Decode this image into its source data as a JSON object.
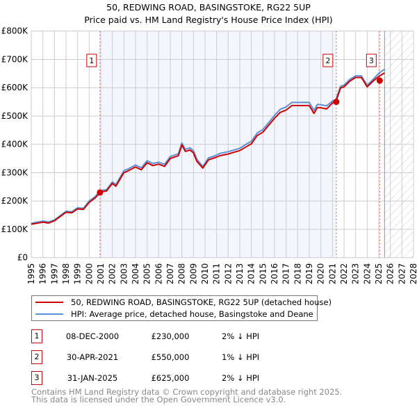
{
  "chart_data": {
    "type": "line",
    "title": "50, REDWING ROAD, BASINGSTOKE, RG22 5UP",
    "subtitle": "Price paid vs. HM Land Registry's House Price Index (HPI)",
    "xlim": [
      1995,
      2028
    ],
    "ylim": [
      0,
      800000
    ],
    "x_ticks": [
      "1995",
      "1996",
      "1997",
      "1998",
      "1999",
      "2000",
      "2001",
      "2002",
      "2003",
      "2004",
      "2005",
      "2006",
      "2007",
      "2008",
      "2009",
      "2010",
      "2011",
      "2012",
      "2013",
      "2014",
      "2015",
      "2016",
      "2017",
      "2018",
      "2019",
      "2020",
      "2021",
      "2022",
      "2023",
      "2024",
      "2025",
      "2026",
      "2027",
      "2028"
    ],
    "y_ticks": [
      {
        "v": 0,
        "label": "£0"
      },
      {
        "v": 100000,
        "label": "£100K"
      },
      {
        "v": 200000,
        "label": "£200K"
      },
      {
        "v": 300000,
        "label": "£300K"
      },
      {
        "v": 400000,
        "label": "£400K"
      },
      {
        "v": 500000,
        "label": "£500K"
      },
      {
        "v": 600000,
        "label": "£600K"
      },
      {
        "v": 700000,
        "label": "£700K"
      },
      {
        "v": 800000,
        "label": "£800K"
      }
    ],
    "grid": true,
    "shaded_range": [
      2000.93,
      2021.33
    ],
    "forecast_hatch_from": 2025.5,
    "series": [
      {
        "name": "50, REDWING ROAD, BASINGSTOKE, RG22 5UP (detached house)",
        "color": "#cc0000",
        "x": [
          1995,
          1996,
          1996.5,
          1997,
          1998,
          1998.5,
          1999,
          1999.5,
          2000,
          2000.5,
          2001,
          2001.5,
          2002,
          2002.3,
          2003,
          2003.3,
          2004,
          2004.5,
          2005,
          2005.5,
          2006,
          2006.5,
          2007,
          2007.7,
          2008,
          2008.3,
          2008.7,
          2009,
          2009.3,
          2009.8,
          2010.3,
          2011,
          2011.3,
          2012,
          2013,
          2013.5,
          2014,
          2014.5,
          2015,
          2016,
          2016.5,
          2017,
          2017.5,
          2018,
          2019,
          2019.4,
          2019.7,
          2020,
          2020.5,
          2021,
          2021.3,
          2021.7,
          2022,
          2022.5,
          2023,
          2023.5,
          2024,
          2024.5,
          2025,
          2025.5
        ],
        "y": [
          118000,
          125000,
          122000,
          130000,
          160000,
          158000,
          172000,
          170000,
          195000,
          210000,
          232000,
          235000,
          262000,
          252000,
          300000,
          305000,
          320000,
          310000,
          335000,
          325000,
          330000,
          322000,
          350000,
          360000,
          398000,
          375000,
          380000,
          370000,
          340000,
          316000,
          345000,
          355000,
          360000,
          366000,
          378000,
          390000,
          402000,
          431000,
          443000,
          492000,
          513000,
          521000,
          537000,
          537000,
          537000,
          509000,
          530000,
          529000,
          525000,
          546000,
          551000,
          599000,
          603000,
          623000,
          636000,
          636000,
          603000,
          623000,
          640000,
          652000
        ]
      },
      {
        "name": "HPI: Average price, detached house, Basingstoke and Deane",
        "color": "#5b8fd6",
        "x": [
          1995,
          1996,
          1996.5,
          1997,
          1998,
          1998.5,
          1999,
          1999.5,
          2000,
          2000.5,
          2001,
          2001.5,
          2002,
          2002.3,
          2003,
          2003.3,
          2004,
          2004.5,
          2005,
          2005.5,
          2006,
          2006.5,
          2007,
          2007.7,
          2008,
          2008.3,
          2008.7,
          2009,
          2009.3,
          2009.8,
          2010.3,
          2011,
          2011.3,
          2012,
          2013,
          2013.5,
          2014,
          2014.5,
          2015,
          2016,
          2016.5,
          2017,
          2017.5,
          2018,
          2019,
          2019.4,
          2019.7,
          2020,
          2020.5,
          2021,
          2021.3,
          2021.7,
          2022,
          2022.5,
          2023,
          2023.5,
          2024,
          2024.5,
          2025,
          2025.5
        ],
        "y": [
          121000,
          129000,
          126000,
          133000,
          164000,
          162000,
          176000,
          174000,
          200000,
          215000,
          237000,
          240000,
          267000,
          258000,
          307000,
          312000,
          327000,
          317000,
          342000,
          332000,
          337000,
          329000,
          357000,
          367000,
          405000,
          382000,
          388000,
          378000,
          347000,
          322000,
          352000,
          362000,
          368000,
          374000,
          386000,
          399000,
          411000,
          440000,
          452000,
          502000,
          524000,
          532000,
          548000,
          548000,
          548000,
          520000,
          541000,
          540000,
          536000,
          553000,
          558000,
          605000,
          609000,
          629000,
          642000,
          642000,
          609000,
          629000,
          651000,
          665000
        ]
      }
    ],
    "markers": [
      {
        "label": "1",
        "x": 2000.93,
        "y": 230000
      },
      {
        "label": "2",
        "x": 2021.33,
        "y": 550000
      },
      {
        "label": "3",
        "x": 2025.08,
        "y": 625000
      }
    ]
  },
  "legend": {
    "property": "50, REDWING ROAD, BASINGSTOKE, RG22 5UP (detached house)",
    "hpi": "HPI: Average price, detached house, Basingstoke and Deane"
  },
  "transactions": [
    {
      "num": "1",
      "date": "08-DEC-2000",
      "price": "£230,000",
      "hpi": "2% ↓ HPI"
    },
    {
      "num": "2",
      "date": "30-APR-2021",
      "price": "£550,000",
      "hpi": "1% ↓ HPI"
    },
    {
      "num": "3",
      "date": "31-JAN-2025",
      "price": "£625,000",
      "hpi": "2% ↓ HPI"
    }
  ],
  "footer": {
    "line1": "Contains HM Land Registry data © Crown copyright and database right 2025.",
    "line2": "This data is licensed under the Open Government Licence v3.0."
  }
}
